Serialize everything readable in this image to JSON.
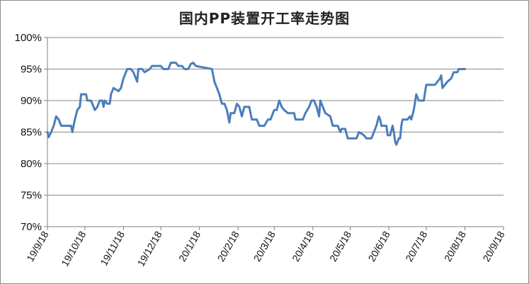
{
  "chart_data": {
    "type": "line",
    "title": "国内PP装置开工率走势图",
    "xlabel": "",
    "ylabel": "",
    "ylim": [
      70,
      100
    ],
    "y_ticks": [
      "70%",
      "75%",
      "80%",
      "85%",
      "90%",
      "95%",
      "100%"
    ],
    "y_tick_values": [
      70,
      75,
      80,
      85,
      90,
      95,
      100
    ],
    "x_ticks": [
      "19/9/18",
      "19/10/18",
      "19/11/18",
      "19/12/18",
      "20/1/18",
      "20/2/18",
      "20/3/18",
      "20/4/18",
      "20/5/18",
      "20/6/18",
      "20/7/18",
      "20/8/18",
      "20/9/18"
    ],
    "grid": "horizontal",
    "legend": "none",
    "series_color": "#4a7ebb",
    "series": [
      {
        "values": [
          [
            "2019-09-18",
            85.0
          ],
          [
            "2019-09-19",
            84.2
          ],
          [
            "2019-09-21",
            85.0
          ],
          [
            "2019-09-23",
            86.0
          ],
          [
            "2019-09-25",
            87.5
          ],
          [
            "2019-09-27",
            87.0
          ],
          [
            "2019-09-29",
            86.0
          ],
          [
            "2019-10-03",
            86.0
          ],
          [
            "2019-10-07",
            86.0
          ],
          [
            "2019-10-08",
            85.0
          ],
          [
            "2019-10-10",
            87.0
          ],
          [
            "2019-10-12",
            88.5
          ],
          [
            "2019-10-14",
            89.0
          ],
          [
            "2019-10-15",
            91.0
          ],
          [
            "2019-10-19",
            91.0
          ],
          [
            "2019-10-20",
            90.0
          ],
          [
            "2019-10-23",
            90.0
          ],
          [
            "2019-10-26",
            88.5
          ],
          [
            "2019-10-28",
            89.0
          ],
          [
            "2019-10-30",
            90.0
          ],
          [
            "2019-11-01",
            90.0
          ],
          [
            "2019-11-02",
            89.0
          ],
          [
            "2019-11-03",
            90.0
          ],
          [
            "2019-11-05",
            89.5
          ],
          [
            "2019-11-07",
            89.5
          ],
          [
            "2019-11-08",
            91.0
          ],
          [
            "2019-11-10",
            92.0
          ],
          [
            "2019-11-14",
            91.5
          ],
          [
            "2019-11-16",
            92.0
          ],
          [
            "2019-11-18",
            93.5
          ],
          [
            "2019-11-21",
            95.0
          ],
          [
            "2019-11-24",
            95.0
          ],
          [
            "2019-11-26",
            94.5
          ],
          [
            "2019-11-29",
            93.0
          ],
          [
            "2019-11-30",
            95.0
          ],
          [
            "2019-12-03",
            95.0
          ],
          [
            "2019-12-05",
            94.5
          ],
          [
            "2019-12-09",
            95.0
          ],
          [
            "2019-12-11",
            95.5
          ],
          [
            "2019-12-18",
            95.5
          ],
          [
            "2019-12-20",
            95.0
          ],
          [
            "2019-12-24",
            95.0
          ],
          [
            "2019-12-26",
            96.0
          ],
          [
            "2019-12-30",
            96.0
          ],
          [
            "2020-01-01",
            95.5
          ],
          [
            "2020-01-04",
            95.5
          ],
          [
            "2020-01-06",
            95.0
          ],
          [
            "2020-01-09",
            95.0
          ],
          [
            "2020-01-11",
            95.8
          ],
          [
            "2020-01-13",
            96.0
          ],
          [
            "2020-01-15",
            95.5
          ],
          [
            "2020-01-28",
            95.0
          ],
          [
            "2020-01-30",
            93.0
          ],
          [
            "2020-02-01",
            92.0
          ],
          [
            "2020-02-03",
            91.0
          ],
          [
            "2020-02-05",
            89.5
          ],
          [
            "2020-02-07",
            89.5
          ],
          [
            "2020-02-09",
            88.5
          ],
          [
            "2020-02-11",
            86.5
          ],
          [
            "2020-02-12",
            88.0
          ],
          [
            "2020-02-15",
            88.0
          ],
          [
            "2020-02-17",
            89.5
          ],
          [
            "2020-02-19",
            89.0
          ],
          [
            "2020-02-21",
            87.5
          ],
          [
            "2020-02-23",
            89.0
          ],
          [
            "2020-02-27",
            89.0
          ],
          [
            "2020-02-29",
            87.0
          ],
          [
            "2020-03-04",
            87.0
          ],
          [
            "2020-03-06",
            86.0
          ],
          [
            "2020-03-10",
            86.0
          ],
          [
            "2020-03-13",
            87.0
          ],
          [
            "2020-03-15",
            87.0
          ],
          [
            "2020-03-18",
            88.5
          ],
          [
            "2020-03-20",
            88.5
          ],
          [
            "2020-03-22",
            90.0
          ],
          [
            "2020-03-24",
            89.0
          ],
          [
            "2020-03-26",
            88.5
          ],
          [
            "2020-03-29",
            88.0
          ],
          [
            "2020-04-03",
            88.0
          ],
          [
            "2020-04-04",
            87.0
          ],
          [
            "2020-04-10",
            87.0
          ],
          [
            "2020-04-12",
            88.0
          ],
          [
            "2020-04-15",
            89.0
          ],
          [
            "2020-04-17",
            90.0
          ],
          [
            "2020-04-19",
            90.0
          ],
          [
            "2020-04-21",
            89.0
          ],
          [
            "2020-04-23",
            87.5
          ],
          [
            "2020-04-24",
            90.0
          ],
          [
            "2020-04-26",
            89.0
          ],
          [
            "2020-04-28",
            88.0
          ],
          [
            "2020-05-02",
            87.5
          ],
          [
            "2020-05-04",
            86.0
          ],
          [
            "2020-05-08",
            86.0
          ],
          [
            "2020-05-10",
            85.0
          ],
          [
            "2020-05-11",
            85.5
          ],
          [
            "2020-05-14",
            85.5
          ],
          [
            "2020-05-16",
            84.0
          ],
          [
            "2020-05-23",
            84.0
          ],
          [
            "2020-05-25",
            85.0
          ],
          [
            "2020-05-29",
            84.5
          ],
          [
            "2020-05-31",
            84.0
          ],
          [
            "2020-06-04",
            84.0
          ],
          [
            "2020-06-06",
            85.0
          ],
          [
            "2020-06-08",
            86.0
          ],
          [
            "2020-06-10",
            87.5
          ],
          [
            "2020-06-11",
            87.0
          ],
          [
            "2020-06-12",
            86.0
          ],
          [
            "2020-06-16",
            86.0
          ],
          [
            "2020-06-17",
            84.5
          ],
          [
            "2020-06-19",
            84.5
          ],
          [
            "2020-06-21",
            86.0
          ],
          [
            "2020-06-22",
            85.0
          ],
          [
            "2020-06-23",
            83.5
          ],
          [
            "2020-06-24",
            83.0
          ],
          [
            "2020-06-26",
            84.0
          ],
          [
            "2020-06-27",
            84.0
          ],
          [
            "2020-06-28",
            86.0
          ],
          [
            "2020-06-29",
            87.0
          ],
          [
            "2020-07-03",
            87.0
          ],
          [
            "2020-07-05",
            87.5
          ],
          [
            "2020-07-06",
            87.0
          ],
          [
            "2020-07-08",
            88.5
          ],
          [
            "2020-07-10",
            91.0
          ],
          [
            "2020-07-12",
            90.0
          ],
          [
            "2020-07-16",
            90.0
          ],
          [
            "2020-07-18",
            92.5
          ],
          [
            "2020-07-25",
            92.5
          ],
          [
            "2020-07-27",
            93.0
          ],
          [
            "2020-07-29",
            93.5
          ],
          [
            "2020-07-30",
            94.0
          ],
          [
            "2020-07-31",
            92.0
          ],
          [
            "2020-08-02",
            92.5
          ],
          [
            "2020-08-04",
            93.0
          ],
          [
            "2020-08-07",
            93.5
          ],
          [
            "2020-08-09",
            94.5
          ],
          [
            "2020-08-12",
            94.5
          ],
          [
            "2020-08-13",
            95.0
          ],
          [
            "2020-08-18",
            95.0
          ]
        ]
      }
    ]
  }
}
